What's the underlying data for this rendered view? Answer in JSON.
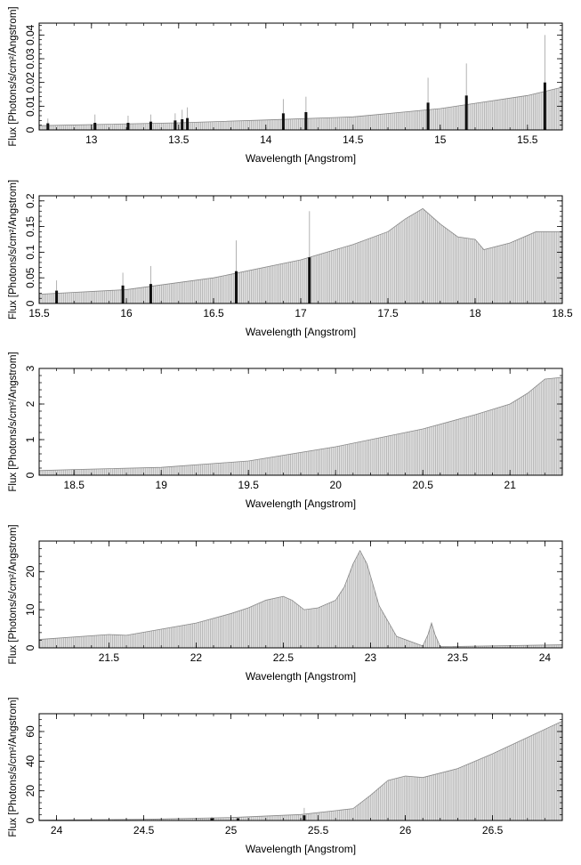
{
  "chart_data": [
    {
      "type": "bar",
      "xlabel": "Wavelength [Angstrom]",
      "ylabel": "Flux [Photons/s/cm²/Angstrom]",
      "xlim": [
        12.7,
        15.7
      ],
      "ylim": [
        0,
        0.045
      ],
      "xticks": [
        13,
        13.5,
        14,
        14.5,
        15,
        15.5
      ],
      "yticks": [
        0,
        0.01,
        0.02,
        0.03,
        0.04
      ],
      "ytick_labels": [
        "0",
        "0.01",
        "0.02",
        "0.03",
        "0.04"
      ],
      "continuum": [
        [
          12.7,
          0.0018
        ],
        [
          13.5,
          0.003
        ],
        [
          14.0,
          0.0042
        ],
        [
          14.5,
          0.0055
        ],
        [
          15.0,
          0.009
        ],
        [
          15.5,
          0.0145
        ],
        [
          15.7,
          0.018
        ]
      ],
      "lines": [
        {
          "x": 12.75,
          "y": 0.0028,
          "err": 0.002
        },
        {
          "x": 13.02,
          "y": 0.003,
          "err": 0.0035
        },
        {
          "x": 13.21,
          "y": 0.003,
          "err": 0.003
        },
        {
          "x": 13.34,
          "y": 0.0035,
          "err": 0.003
        },
        {
          "x": 13.48,
          "y": 0.004,
          "err": 0.003
        },
        {
          "x": 13.52,
          "y": 0.0045,
          "err": 0.004
        },
        {
          "x": 13.55,
          "y": 0.005,
          "err": 0.0045
        },
        {
          "x": 14.1,
          "y": 0.007,
          "err": 0.006
        },
        {
          "x": 14.23,
          "y": 0.0075,
          "err": 0.0065
        },
        {
          "x": 14.93,
          "y": 0.0115,
          "err": 0.0105
        },
        {
          "x": 15.15,
          "y": 0.0145,
          "err": 0.0135
        },
        {
          "x": 15.6,
          "y": 0.02,
          "err": 0.02
        }
      ]
    },
    {
      "type": "bar",
      "xlabel": "Wavelength [Angstrom]",
      "ylabel": "Flux [Photons/s/cm²/Angstrom]",
      "xlim": [
        15.5,
        18.5
      ],
      "ylim": [
        0,
        0.21
      ],
      "xticks": [
        15.5,
        16,
        16.5,
        17,
        17.5,
        18,
        18.5
      ],
      "yticks": [
        0,
        0.05,
        0.1,
        0.15,
        0.2
      ],
      "ytick_labels": [
        "0",
        "0.05",
        "0.1",
        "0.15",
        "0.2"
      ],
      "continuum": [
        [
          15.5,
          0.018
        ],
        [
          16.0,
          0.027
        ],
        [
          16.5,
          0.05
        ],
        [
          17.0,
          0.085
        ],
        [
          17.3,
          0.115
        ],
        [
          17.5,
          0.14
        ],
        [
          17.6,
          0.165
        ],
        [
          17.7,
          0.185
        ],
        [
          17.8,
          0.155
        ],
        [
          17.9,
          0.13
        ],
        [
          18.0,
          0.125
        ],
        [
          18.05,
          0.105
        ],
        [
          18.2,
          0.118
        ],
        [
          18.35,
          0.14
        ],
        [
          18.5,
          0.14
        ]
      ],
      "lines": [
        {
          "x": 15.6,
          "y": 0.025,
          "err": 0.02
        },
        {
          "x": 15.98,
          "y": 0.035,
          "err": 0.025
        },
        {
          "x": 16.14,
          "y": 0.038,
          "err": 0.035
        },
        {
          "x": 16.63,
          "y": 0.063,
          "err": 0.06
        },
        {
          "x": 17.05,
          "y": 0.09,
          "err": 0.09
        }
      ]
    },
    {
      "type": "bar",
      "xlabel": "Wavelength [Angstrom]",
      "ylabel": "Flux [Photons/s/cm²/Angstrom]",
      "xlim": [
        18.3,
        21.3
      ],
      "ylim": [
        0,
        3.0
      ],
      "xticks": [
        18.5,
        19,
        19.5,
        20,
        20.5,
        21
      ],
      "yticks": [
        0,
        1,
        2,
        3
      ],
      "ytick_labels": [
        "0",
        "1",
        "2",
        "3"
      ],
      "continuum": [
        [
          18.3,
          0.13
        ],
        [
          18.5,
          0.16
        ],
        [
          19.0,
          0.22
        ],
        [
          19.5,
          0.4
        ],
        [
          20.0,
          0.8
        ],
        [
          20.5,
          1.3
        ],
        [
          20.8,
          1.7
        ],
        [
          21.0,
          2.0
        ],
        [
          21.1,
          2.3
        ],
        [
          21.2,
          2.7
        ],
        [
          21.3,
          2.75
        ]
      ],
      "lines": []
    },
    {
      "type": "bar",
      "xlabel": "Wavelength [Angstrom]",
      "ylabel": "Flux [Photons/s/cm²/Angstrom]",
      "xlim": [
        21.1,
        24.1
      ],
      "ylim": [
        0,
        28
      ],
      "xticks": [
        21.5,
        22,
        22.5,
        23,
        23.5,
        24
      ],
      "yticks": [
        0,
        10,
        20
      ],
      "ytick_labels": [
        "0",
        "10",
        "20"
      ],
      "continuum": [
        [
          21.1,
          2.2
        ],
        [
          21.5,
          3.5
        ],
        [
          21.6,
          3.3
        ],
        [
          22.0,
          6.5
        ],
        [
          22.2,
          9.0
        ],
        [
          22.3,
          10.5
        ],
        [
          22.4,
          12.5
        ],
        [
          22.5,
          13.5
        ],
        [
          22.55,
          12.5
        ],
        [
          22.62,
          10.0
        ],
        [
          22.7,
          10.5
        ],
        [
          22.8,
          12.5
        ],
        [
          22.85,
          16.0
        ],
        [
          22.9,
          22.0
        ],
        [
          22.94,
          25.5
        ],
        [
          22.98,
          22.0
        ],
        [
          23.05,
          11.0
        ],
        [
          23.15,
          3.0
        ],
        [
          23.3,
          0.5
        ],
        [
          23.33,
          3.5
        ],
        [
          23.35,
          6.5
        ],
        [
          23.37,
          3.5
        ],
        [
          23.4,
          0.3
        ],
        [
          24.1,
          0.8
        ]
      ],
      "lines": []
    },
    {
      "type": "bar",
      "xlabel": "Wavelength [Angstrom]",
      "ylabel": "Flux [Photons/s/cm²/Angstrom]",
      "xlim": [
        23.9,
        26.9
      ],
      "ylim": [
        0,
        72
      ],
      "xticks": [
        24,
        24.5,
        25,
        25.5,
        26,
        26.5
      ],
      "yticks": [
        0,
        20,
        40,
        60
      ],
      "ytick_labels": [
        "0",
        "20",
        "40",
        "60"
      ],
      "continuum": [
        [
          23.9,
          0.3
        ],
        [
          24.5,
          0.8
        ],
        [
          25.0,
          2.0
        ],
        [
          25.4,
          4.0
        ],
        [
          25.7,
          8.0
        ],
        [
          25.8,
          17.0
        ],
        [
          25.9,
          27.0
        ],
        [
          26.0,
          30.0
        ],
        [
          26.1,
          29.0
        ],
        [
          26.3,
          35.0
        ],
        [
          26.5,
          45.0
        ],
        [
          26.9,
          67.0
        ]
      ],
      "lines": [
        {
          "x": 24.89,
          "y": 1.5,
          "err": 1.0
        },
        {
          "x": 25.04,
          "y": 1.5,
          "err": 1.0
        },
        {
          "x": 25.42,
          "y": 3.5,
          "err": 5.0
        }
      ]
    }
  ]
}
